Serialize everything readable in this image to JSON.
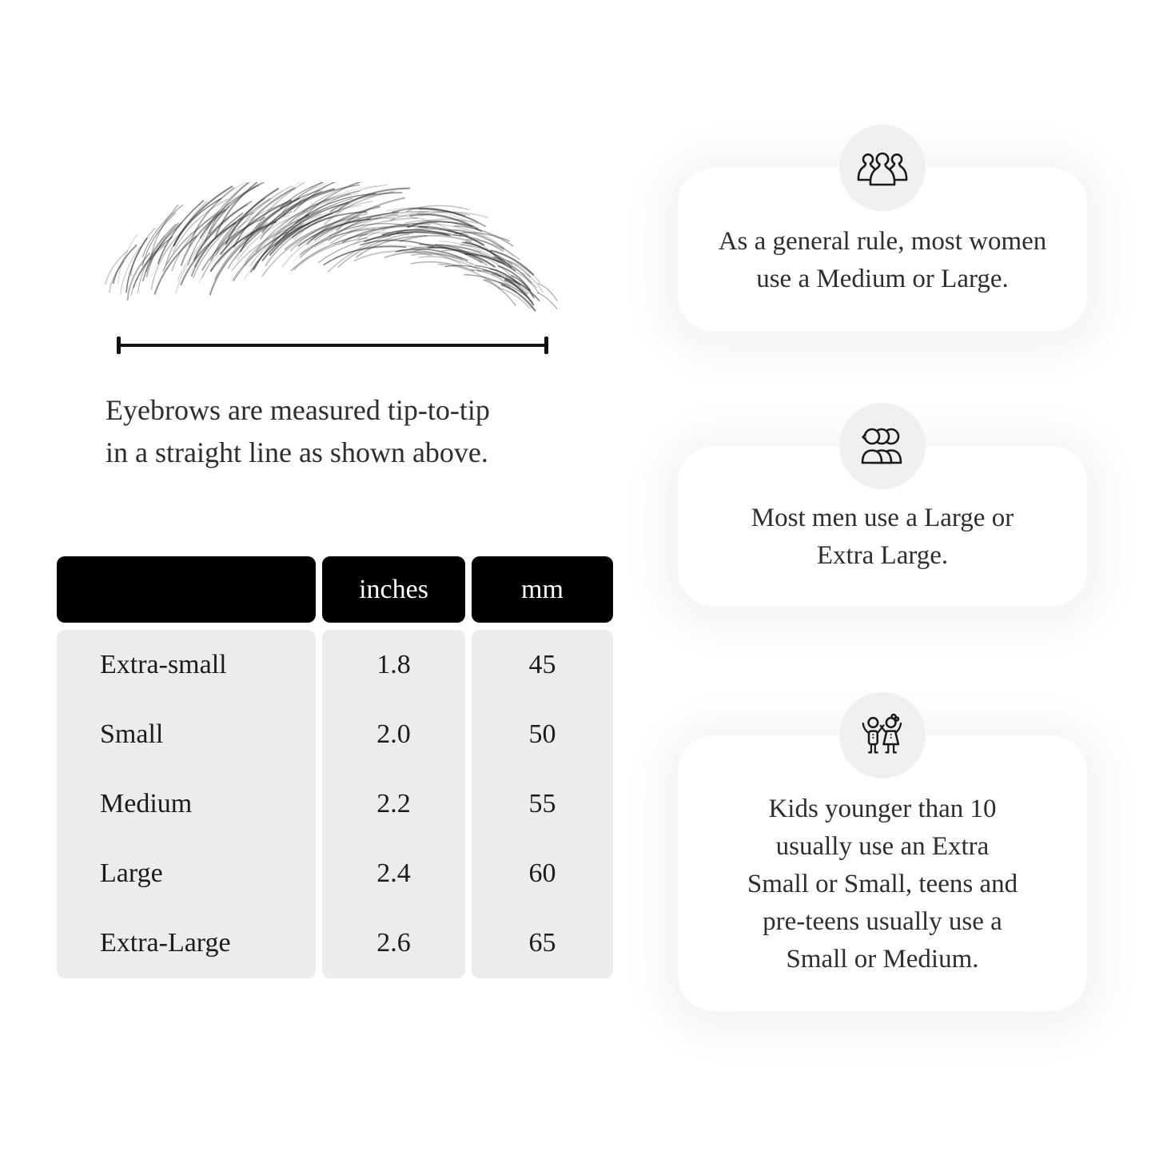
{
  "page": {
    "background": "#ffffff",
    "text_color": "#2e2e2e"
  },
  "measure_diagram": {
    "illustration": "eyebrow-sketch",
    "caption_lines": [
      "Eyebrows are measured tip-to-tip",
      "in a straight line as shown above."
    ]
  },
  "size_table": {
    "headers": {
      "size": "",
      "inches": "inches",
      "mm": "mm"
    },
    "rows": [
      {
        "size": "Extra-small",
        "inches": "1.8",
        "mm": "45"
      },
      {
        "size": "Small",
        "inches": "2.0",
        "mm": "50"
      },
      {
        "size": "Medium",
        "inches": "2.2",
        "mm": "55"
      },
      {
        "size": "Large",
        "inches": "2.4",
        "mm": "60"
      },
      {
        "size": "Extra-Large",
        "inches": "2.6",
        "mm": "65"
      }
    ],
    "header_bg": "#000000",
    "header_text_color": "#ffffff",
    "body_bg": "#ececec"
  },
  "info_cards": [
    {
      "icon": "women-group-icon",
      "lines": [
        "As a general rule, most women",
        "use a Medium or Large."
      ]
    },
    {
      "icon": "men-group-icon",
      "lines": [
        "Most men use a Large or",
        "Extra Large."
      ]
    },
    {
      "icon": "kids-icon",
      "lines": [
        "Kids younger than 10",
        "usually use an Extra",
        "Small or Small, teens and",
        "pre-teens usually use a",
        "Small or Medium."
      ]
    }
  ],
  "colors": {
    "card_bg": "#ffffff",
    "icon_circle_bg": "#f0f0f0",
    "icon_stroke": "#1a1a1a",
    "measure_line": "#111111"
  }
}
